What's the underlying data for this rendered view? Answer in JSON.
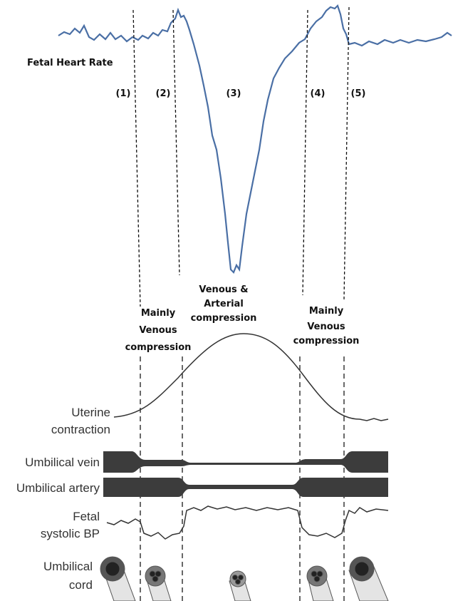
{
  "heart_rate_label": "Fetal Heart Rate",
  "phases": [
    "(1)",
    "(2)",
    "(3)",
    "(4)",
    "(5)"
  ],
  "compression_labels": [
    {
      "lines": [
        "Mainly",
        "Venous",
        "compression"
      ]
    },
    {
      "lines": [
        "Venous &",
        "Arterial",
        "compression"
      ]
    },
    {
      "lines": [
        "Mainly",
        "Venous",
        "compression"
      ]
    }
  ],
  "row_labels": {
    "uterine": [
      "Uterine",
      "contraction"
    ],
    "vein": "Umbilical vein",
    "artery": "Umbilical artery",
    "bp": [
      "Fetal",
      "systolic BP"
    ],
    "cord": [
      "Umbilical",
      "cord"
    ]
  }
}
